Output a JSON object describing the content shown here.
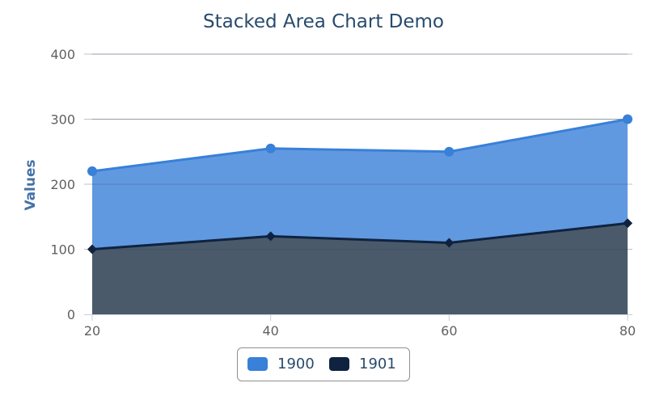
{
  "chart_data": {
    "type": "area",
    "stacked": true,
    "title": "Stacked Area Chart Demo",
    "xlabel": "",
    "ylabel": "Values",
    "x": [
      20,
      40,
      60,
      80
    ],
    "x_ticks": [
      "20",
      "40",
      "60",
      "80"
    ],
    "y_ticks": [
      "0",
      "100",
      "200",
      "300",
      "400"
    ],
    "ylim": [
      0,
      400
    ],
    "grid": true,
    "legend_position": "bottom-center",
    "series": [
      {
        "name": "1900",
        "values": [
          120,
          135,
          140,
          160
        ],
        "color": "#3880d8",
        "fill": "#6199e0",
        "marker": "circle"
      },
      {
        "name": "1901",
        "values": [
          100,
          120,
          110,
          140
        ],
        "color": "#0f2340",
        "fill": "#4a5a6b",
        "marker": "diamond"
      }
    ]
  },
  "colors": {
    "title": "#274b6d",
    "axis_title": "#4572a7",
    "tick_label": "#606060",
    "grid": "#c0c0c0",
    "axis_line": "#c0d0e0"
  }
}
